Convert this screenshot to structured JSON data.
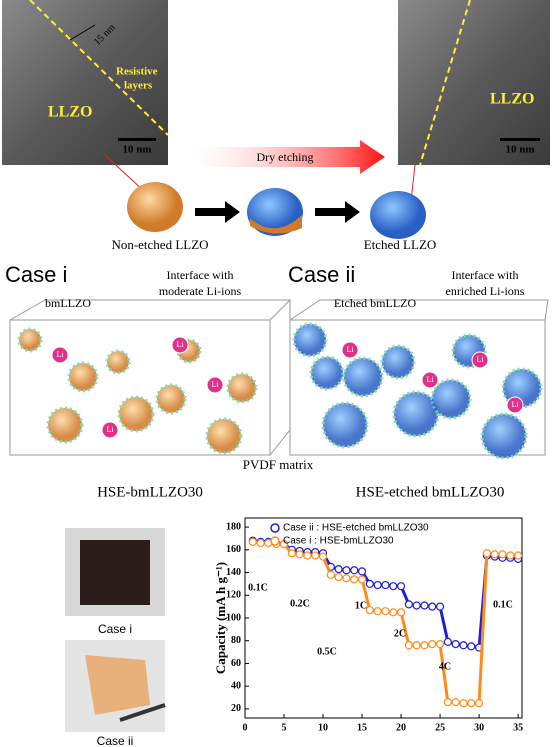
{
  "top_panel": {
    "left_image_label": "LLZO",
    "thickness": "15 nm",
    "resistive": [
      "Resistive",
      "layers"
    ],
    "left_scale": "10 nm",
    "arrow_label": "Dry etching",
    "right_image_label": "LLZO",
    "right_scale": "10 nm",
    "non_etched": "Non-etched LLZO",
    "etched": "Etched LLZO"
  },
  "case_panels": {
    "case_i": {
      "title": "Case i",
      "particle": "bmLLZO",
      "interface": [
        "Interface with",
        "moderate Li-ions"
      ],
      "caption": "HSE-bmLLZO30"
    },
    "case_ii": {
      "title": "Case ii",
      "particle": "Etched bmLLZO",
      "interface": [
        "Interface with",
        "enriched Li-ions"
      ],
      "caption": "HSE-etched bmLLZO30"
    },
    "matrix": "PVDF matrix",
    "li_label": "Li"
  },
  "photos": {
    "case_i": "Case i",
    "case_ii": "Case ii"
  },
  "chart_data": {
    "type": "line",
    "y_label": "Capacity (mA h g⁻¹)",
    "x": [
      1,
      2,
      3,
      4,
      5,
      6,
      7,
      8,
      9,
      10,
      11,
      12,
      13,
      14,
      15,
      16,
      17,
      18,
      19,
      20,
      21,
      22,
      23,
      24,
      25,
      26,
      27,
      28,
      29,
      30,
      31,
      32,
      33,
      34,
      35
    ],
    "series": [
      {
        "name": "Case ii : HSE-etched bmLLZO30",
        "color": "#1f1fd6",
        "values": [
          168,
          167,
          167,
          166,
          165,
          160,
          159,
          158,
          158,
          157,
          145,
          143,
          142,
          142,
          141,
          130,
          129,
          129,
          128,
          128,
          112,
          111,
          111,
          110,
          110,
          79,
          77,
          76,
          75,
          74,
          155,
          154,
          153,
          153,
          152
        ]
      },
      {
        "name": "Case i : HSE-bmLLZO30",
        "color": "#ff8c1a",
        "values": [
          167,
          166,
          166,
          165,
          165,
          157,
          156,
          155,
          155,
          154,
          138,
          136,
          135,
          134,
          134,
          107,
          106,
          106,
          105,
          105,
          76,
          76,
          76,
          77,
          77,
          26,
          26,
          25,
          25,
          25,
          157,
          156,
          156,
          155,
          155
        ]
      }
    ],
    "annotations": [
      "0.1C",
      "0.2C",
      "0.5C",
      "1C",
      "2C",
      "4C",
      "0.1C"
    ],
    "xlim": [
      0,
      35.5
    ],
    "ylim": [
      12,
      188
    ],
    "xticks": [
      0,
      5,
      10,
      15,
      20,
      25,
      30,
      35
    ],
    "yticks": [
      20,
      40,
      60,
      80,
      100,
      120,
      140,
      160,
      180
    ]
  }
}
